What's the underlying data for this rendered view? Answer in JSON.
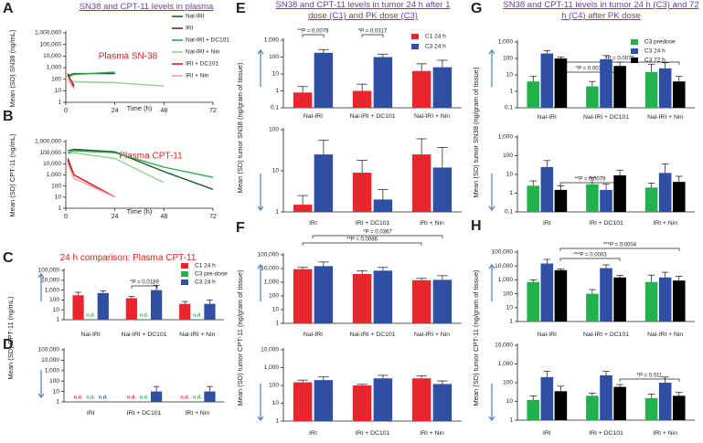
{
  "chart_data": [
    {
      "type": "line",
      "label": "A",
      "title": "SN38 and CPT-11 levels in plasma",
      "ylabel": "Mean (SD) SN38 (ng/mL)",
      "xlabel": "Time (h)",
      "annotations": [
        "Plasma SN-38"
      ],
      "log": true,
      "legend": "top-right",
      "xlim": [
        0,
        72
      ],
      "xticks": [
        0,
        24,
        48,
        72
      ],
      "ylim": [
        1,
        1000000
      ],
      "yticks": [
        1,
        10,
        100,
        {
          "value": 1000,
          "label": "1,000"
        },
        {
          "value": 10000,
          "label": "10,000"
        },
        {
          "value": 100000,
          "label": "100,000"
        },
        {
          "value": 1000000,
          "label": "1,000,000"
        }
      ],
      "series": [
        {
          "name": "Nal-IRI",
          "color": "#1d5e2d",
          "x": [
            1,
            4,
            24
          ],
          "values": [
            200,
            300,
            300
          ]
        },
        {
          "name": "IRI",
          "color": "#8b1a1a",
          "x": [
            1,
            4
          ],
          "values": [
            300,
            20
          ]
        },
        {
          "name": "Nal-IRI + DC101",
          "color": "#2ea84a",
          "x": [
            1,
            4,
            24
          ],
          "values": [
            150,
            250,
            400
          ]
        },
        {
          "name": "Nal-IRI + Nin",
          "color": "#8fd18f",
          "x": [
            1,
            4,
            24,
            48
          ],
          "values": [
            100,
            60,
            50,
            25
          ]
        },
        {
          "name": "IRI + DC101",
          "color": "#e02020",
          "x": [
            1,
            4
          ],
          "values": [
            200,
            30
          ]
        },
        {
          "name": "IRI + Nin",
          "color": "#f4a0a0",
          "x": [
            1,
            4
          ],
          "values": [
            100,
            15
          ]
        }
      ]
    },
    {
      "type": "line",
      "label": "B",
      "ylabel": "Mean (SD) CPT-11 (ng/mL)",
      "xlabel": "Time (h)",
      "annotations": [
        "Plasma CPT-11"
      ],
      "log": true,
      "xlim": [
        0,
        72
      ],
      "xticks": [
        0,
        24,
        48,
        72
      ],
      "ylim": [
        1,
        1000000
      ],
      "yticks": [
        1,
        10,
        100,
        {
          "value": 1000,
          "label": "1,000"
        },
        {
          "value": 10000,
          "label": "10,000"
        },
        {
          "value": 100000,
          "label": "100,000"
        },
        {
          "value": 1000000,
          "label": "1,000,000"
        }
      ],
      "series": [
        {
          "color": "#1d5e2d",
          "x": [
            1,
            4,
            24,
            48,
            72
          ],
          "values": [
            150000,
            200000,
            120000,
            2000,
            50
          ]
        },
        {
          "color": "#8b1a1a",
          "x": [
            1,
            4,
            24
          ],
          "values": [
            30000,
            1000,
            10
          ]
        },
        {
          "color": "#2ea84a",
          "x": [
            1,
            4,
            24,
            48,
            72
          ],
          "values": [
            100000,
            150000,
            100000,
            5000,
            600
          ]
        },
        {
          "color": "#8fd18f",
          "x": [
            1,
            4,
            24,
            48
          ],
          "values": [
            80000,
            100000,
            30000,
            200
          ]
        },
        {
          "color": "#e02020",
          "x": [
            1,
            4,
            24
          ],
          "values": [
            20000,
            1000,
            10
          ]
        },
        {
          "color": "#f4a0a0",
          "x": [
            1,
            4,
            24
          ],
          "values": [
            10000,
            500,
            10
          ]
        }
      ]
    },
    {
      "type": "bar",
      "label": "C",
      "title": "24 h comparison: Plasma CPT-11",
      "ylabel": "Mean (SD) CPT-11 (ng/mL)",
      "annotations": [
        "*P = 0.0189"
      ],
      "log": true,
      "legend": "top-right",
      "categories": [
        "Nal-IRI",
        "Nal-IRI + DC101",
        "Nal-IRI + Nin"
      ],
      "ylim": [
        1,
        100000
      ],
      "yticks": [
        1,
        10,
        100,
        {
          "value": 1000,
          "label": "1,000"
        },
        {
          "value": 10000,
          "label": "10,000"
        },
        {
          "value": 100000,
          "label": "100,000"
        }
      ],
      "series": [
        {
          "name": "C1 24 h",
          "color": "#e8262b",
          "values": [
            300,
            150,
            40
          ],
          "errors": [
            300,
            80,
            30
          ]
        },
        {
          "name": "C3 pre-dose",
          "color": "#22b24c",
          "values": [
            null,
            null,
            null
          ],
          "value_labels": [
            "n.d.",
            "n.d.",
            "n.d."
          ]
        },
        {
          "name": "C3 24 h",
          "color": "#2e4fa3",
          "values": [
            500,
            1000,
            40
          ],
          "errors": [
            300,
            2000,
            60
          ]
        }
      ]
    },
    {
      "type": "bar",
      "label": "D",
      "log": true,
      "categories": [
        "IRI",
        "IRI + DC101",
        "IRI + Nin"
      ],
      "ylim": [
        1,
        100000
      ],
      "yticks": [
        1,
        10,
        100,
        {
          "value": 1000,
          "label": "1,000"
        },
        {
          "value": 10000,
          "label": "10,000"
        },
        {
          "value": 100000,
          "label": "100,000"
        }
      ],
      "series": [
        {
          "color": "#e8262b",
          "values": [
            null,
            null,
            null
          ],
          "value_labels": [
            "n.d.",
            "n.d.",
            "n.d."
          ]
        },
        {
          "color": "#22b24c",
          "values": [
            null,
            null,
            null
          ],
          "value_labels": [
            "n.d.",
            "n.d.",
            "n.d."
          ]
        },
        {
          "color": "#2e4fa3",
          "values": [
            null,
            10,
            10
          ],
          "errors": [
            null,
            20,
            20
          ],
          "value_labels": [
            "n.d.",
            null,
            null
          ]
        }
      ]
    },
    {
      "type": "bar",
      "label": "E",
      "title": "SN38 and CPT-11 levels in tumor 24 h after 1 dose (C1) and PK dose (C3)",
      "ylabel": "Mean (SD) tumor SN38 (ng/gram of tissue)",
      "annotations": [
        "**P = 0.0079",
        "*P = 0.0317"
      ],
      "log": true,
      "legend": "top-right",
      "categories": [
        "Nal-IRI",
        "Nal-IRI + DC101",
        "Nal-IRI + Nin"
      ],
      "ylim": [
        0.1,
        1000
      ],
      "yticks": [
        0.1,
        1,
        10,
        100,
        {
          "value": 1000,
          "label": "1,000"
        }
      ],
      "series": [
        {
          "name": "C1 24 h",
          "color": "#e8262b",
          "values": [
            0.8,
            1,
            15
          ],
          "errors": [
            1,
            1.5,
            25
          ]
        },
        {
          "name": "C3 24 h",
          "color": "#2e4fa3",
          "values": [
            180,
            100,
            25
          ],
          "errors": [
            100,
            50,
            40
          ]
        }
      ]
    },
    {
      "type": "bar",
      "log": true,
      "categories": [
        "IRI",
        "IRI + DC101",
        "IRI + Nin"
      ],
      "ylim": [
        1,
        100
      ],
      "yticks": [
        1,
        10,
        100
      ],
      "series": [
        {
          "color": "#e8262b",
          "values": [
            1.5,
            9,
            25
          ],
          "errors": [
            1,
            9,
            35
          ]
        },
        {
          "color": "#2e4fa3",
          "values": [
            25,
            2,
            12
          ],
          "errors": [
            30,
            1.5,
            25
          ]
        }
      ]
    },
    {
      "type": "bar",
      "label": "F",
      "ylabel": "Mean (SD) tumor CPT-11 (ng/gram of tissue)",
      "annotations": [
        "*P = 0.0367",
        "**P = 0.0086"
      ],
      "log": true,
      "categories": [
        "Nal-IRI",
        "Nal-IRI + DC101",
        "Nal-IRI + Nin"
      ],
      "ylim": [
        1,
        100000
      ],
      "yticks": [
        1,
        10,
        100,
        {
          "value": 1000,
          "label": "1,000"
        },
        {
          "value": 10000,
          "label": "10,000"
        },
        {
          "value": 100000,
          "label": "100,000"
        }
      ],
      "series": [
        {
          "color": "#e8262b",
          "values": [
            9000,
            4000,
            1400
          ],
          "errors": [
            3000,
            3000,
            500
          ]
        },
        {
          "color": "#2e4fa3",
          "values": [
            15000,
            7000,
            1500
          ],
          "errors": [
            15000,
            5000,
            1500
          ]
        }
      ]
    },
    {
      "type": "bar",
      "log": true,
      "categories": [
        "IRI",
        "IRI + DC101",
        "IRI + Nin"
      ],
      "ylim": [
        1,
        10000
      ],
      "yticks": [
        1,
        10,
        100,
        {
          "value": 1000,
          "label": "1,000"
        },
        {
          "value": 10000,
          "label": "10,000"
        }
      ],
      "series": [
        {
          "color": "#e8262b",
          "values": [
            150,
            100,
            250
          ],
          "errors": [
            50,
            15,
            100
          ]
        },
        {
          "color": "#2e4fa3",
          "values": [
            200,
            250,
            120
          ],
          "errors": [
            100,
            120,
            60
          ]
        }
      ]
    },
    {
      "type": "bar",
      "label": "G",
      "title": "SN38 and CPT-11 levels in tumor 24 h (C3) and 72 h (C4) after PK dose",
      "ylabel": "Mean (SD) tumor SN38 (ng/gram of tissue)",
      "annotations": [
        "*P = 0.0079",
        "*P = 0.0079"
      ],
      "log": true,
      "legend": "top-right",
      "categories": [
        "Nal-IRI",
        "Nal-IRI + DC101",
        "Nal-IRI + Nin"
      ],
      "ylim": [
        0.1,
        1000
      ],
      "yticks": [
        0.1,
        1,
        10,
        100,
        {
          "value": 1000,
          "label": "1,000"
        }
      ],
      "series": [
        {
          "name": "C3 predose",
          "color": "#22b24c",
          "values": [
            4,
            2,
            15
          ],
          "errors": [
            4,
            2,
            30
          ]
        },
        {
          "name": "C3 24 h",
          "color": "#2e4fa3",
          "values": [
            200,
            90,
            25
          ],
          "errors": [
            100,
            60,
            30
          ]
        },
        {
          "name": "C3 72 h",
          "color": "#000000",
          "values": [
            100,
            35,
            4
          ],
          "errors": [
            20,
            25,
            4
          ]
        }
      ]
    },
    {
      "type": "bar",
      "annotations": [
        "**P = 0.0079"
      ],
      "log": true,
      "categories": [
        "IRI",
        "IRI + DC101",
        "IRI + Nin"
      ],
      "ylim": [
        0.1,
        1000
      ],
      "yticks": [
        0.1,
        1,
        10,
        100,
        {
          "value": 1000,
          "label": "1,000"
        }
      ],
      "series": [
        {
          "color": "#22b24c",
          "values": [
            2.5,
            3,
            2
          ],
          "errors": [
            2,
            4,
            1.5
          ]
        },
        {
          "color": "#2e4fa3",
          "values": [
            25,
            1.5,
            12
          ],
          "errors": [
            30,
            1.5,
            25
          ]
        },
        {
          "color": "#000000",
          "values": [
            1.5,
            9,
            4
          ],
          "errors": [
            1,
            8,
            4
          ]
        }
      ]
    },
    {
      "type": "bar",
      "label": "H",
      "ylabel": "Mean (SD) tumor CPT-11 (ng/gram of tissue)",
      "annotations": [
        "***P = 0.0003",
        "***P = 0.0004"
      ],
      "log": true,
      "categories": [
        "Nal-IRI",
        "Nal-IRI + DC101",
        "Nal-IRI + Nin"
      ],
      "ylim": [
        1,
        100000
      ],
      "yticks": [
        1,
        10,
        100,
        {
          "value": 1000,
          "label": "1,000"
        },
        {
          "value": 10000,
          "label": "10,000"
        },
        {
          "value": 100000,
          "label": "100,000"
        }
      ],
      "series": [
        {
          "color": "#22b24c",
          "values": [
            700,
            100,
            700
          ],
          "errors": [
            300,
            100,
            1500
          ]
        },
        {
          "color": "#2e4fa3",
          "values": [
            15000,
            7000,
            1500
          ],
          "errors": [
            15000,
            5000,
            2000
          ]
        },
        {
          "color": "#000000",
          "values": [
            5000,
            1500,
            900
          ],
          "errors": [
            1000,
            600,
            900
          ]
        }
      ]
    },
    {
      "type": "bar",
      "annotations": [
        "*P = 0.011"
      ],
      "log": true,
      "categories": [
        "IRI",
        "IRI + DC101",
        "IRI + Nin"
      ],
      "ylim": [
        1,
        10000
      ],
      "yticks": [
        1,
        10,
        100,
        {
          "value": 1000,
          "label": "1,000"
        },
        {
          "value": 10000,
          "label": "10,000"
        }
      ],
      "series": [
        {
          "color": "#22b24c",
          "values": [
            12,
            20,
            15
          ],
          "errors": [
            8,
            8,
            10
          ]
        },
        {
          "color": "#2e4fa3",
          "values": [
            200,
            250,
            100
          ],
          "errors": [
            200,
            150,
            100
          ]
        },
        {
          "color": "#000000",
          "values": [
            35,
            60,
            20
          ],
          "errors": [
            30,
            20,
            10
          ]
        }
      ]
    }
  ]
}
